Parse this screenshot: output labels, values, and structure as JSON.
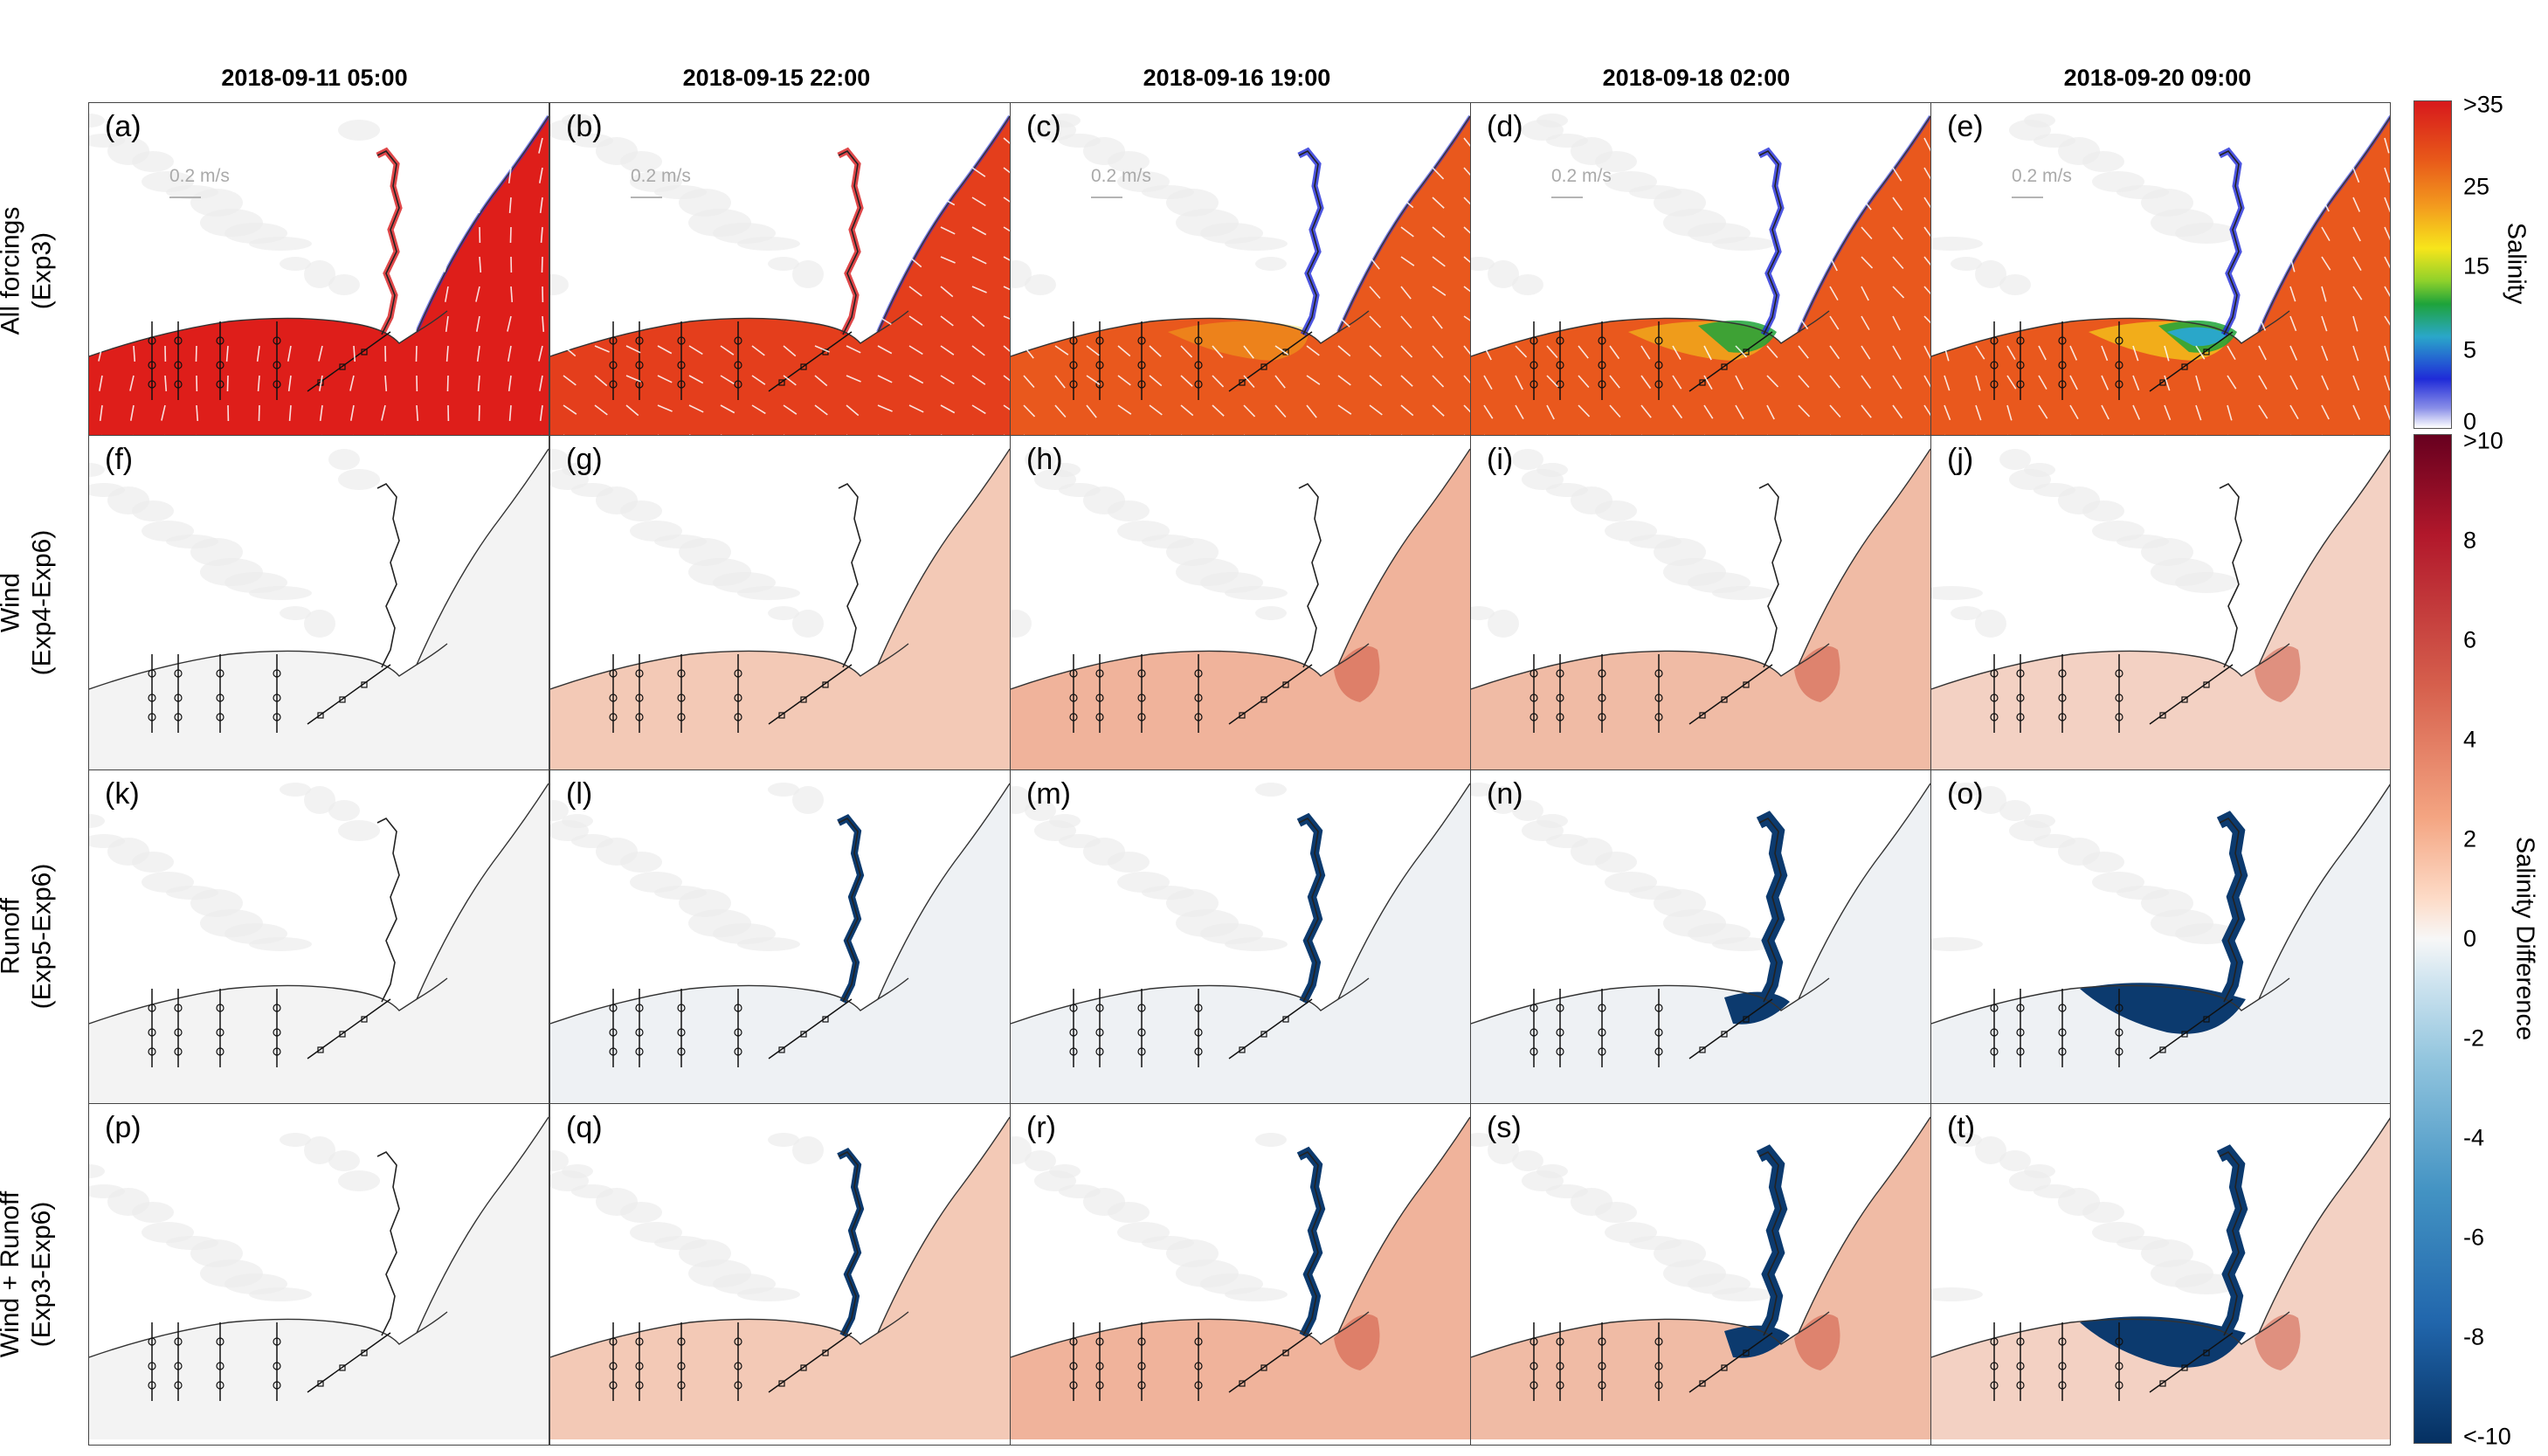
{
  "columns": [
    "2018-09-11 05:00",
    "2018-09-15 22:00",
    "2018-09-16 19:00",
    "2018-09-18 02:00",
    "2018-09-20 09:00"
  ],
  "rows": [
    {
      "line1": "All forcings",
      "line2": "(Exp3)"
    },
    {
      "line1": "Wind",
      "line2": "(Exp4-Exp6)"
    },
    {
      "line1": "Runoff",
      "line2": "(Exp5-Exp6)"
    },
    {
      "line1": "Wind + Runoff",
      "line2": "(Exp3-Exp6)"
    }
  ],
  "panel_letters": [
    "(a)",
    "(b)",
    "(c)",
    "(d)",
    "(e)",
    "(f)",
    "(g)",
    "(h)",
    "(i)",
    "(j)",
    "(k)",
    "(l)",
    "(m)",
    "(n)",
    "(o)",
    "(p)",
    "(q)",
    "(r)",
    "(s)",
    "(t)"
  ],
  "scale_label": "0.2 m/s",
  "colorbar_salinity": {
    "title": "Salinity",
    "ticks": [
      ">35",
      "25",
      "15",
      "5",
      "0"
    ]
  },
  "colorbar_diff": {
    "title": "Salinity Difference",
    "ticks": [
      ">10",
      "8",
      "6",
      "4",
      "2",
      "0",
      "-2",
      "-4",
      "-6",
      "-8",
      "<-10"
    ]
  },
  "chart_data": {
    "type": "heatmap",
    "description_fields": "Salinity maps (row 1) and salinity difference maps (rows 2-4) at five times",
    "salinity_range": [
      0,
      35
    ],
    "difference_range": [
      -10,
      10
    ],
    "colors": {
      "salinity_high": "#d7191c",
      "salinity_mid": "#f7e51b",
      "salinity_low": "#1f2bd8",
      "diff_pos": "#e58c6e",
      "diff_neg": "#0c3a6e",
      "neutral": "#f4f5f6"
    }
  }
}
